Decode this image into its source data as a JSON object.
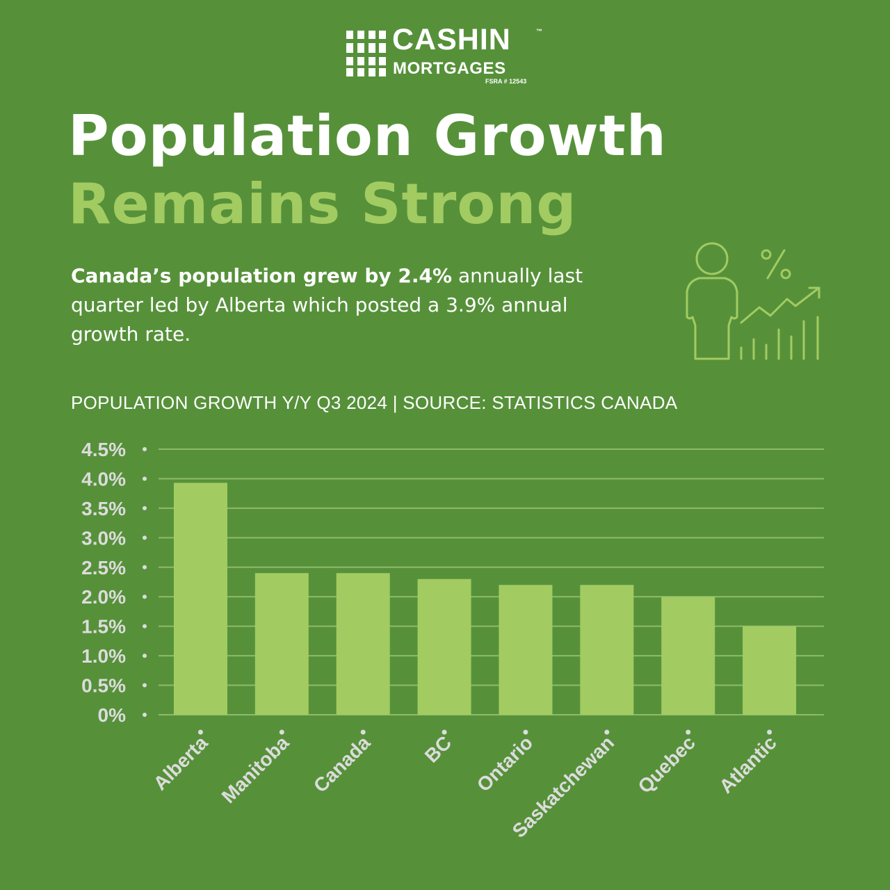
{
  "brand": {
    "name": "CASHIN",
    "tm": "™",
    "sub": "MORTGAGES",
    "license": "FSRA # 12543"
  },
  "headline": {
    "line1": "Population Growth",
    "line2": "Remains Strong"
  },
  "intro": {
    "bold": "Canada’s population grew by 2.4%",
    "rest": " annually last quarter led by Alberta which posted a 3.9% annual growth rate."
  },
  "chart_caption": "POPULATION GROWTH Y/Y Q3 2024 | SOURCE: STATISTICS CANADA",
  "icon_names": [
    "person-icon",
    "percent-icon",
    "growth-trend-icon"
  ],
  "colors": {
    "background": "#56913a",
    "accent": "#a2cb62",
    "bar": "#a2cb62",
    "gridline": "#8fba6c",
    "axis_text": "#dcdcdc"
  },
  "chart_data": {
    "type": "bar",
    "title": "POPULATION GROWTH Y/Y Q3 2024 | SOURCE: STATISTICS CANADA",
    "categories": [
      "Alberta",
      "Manitoba",
      "Canada",
      "BC",
      "Ontario",
      "Saskatchewan",
      "Quebec",
      "Atlantic"
    ],
    "values": [
      3.93,
      2.4,
      2.4,
      2.3,
      2.2,
      2.2,
      2.0,
      1.5
    ],
    "ylim": [
      0,
      4.5
    ],
    "yticks": [
      0,
      0.5,
      1.0,
      1.5,
      2.0,
      2.5,
      3.0,
      3.5,
      4.0,
      4.5
    ],
    "ytick_labels": [
      "0%",
      "0.5%",
      "1.0%",
      "1.5%",
      "2.0%",
      "2.5%",
      "3.0%",
      "3.5%",
      "4.0%",
      "4.5%"
    ],
    "grid": true,
    "legend": "none",
    "xlabel": "",
    "ylabel": ""
  }
}
